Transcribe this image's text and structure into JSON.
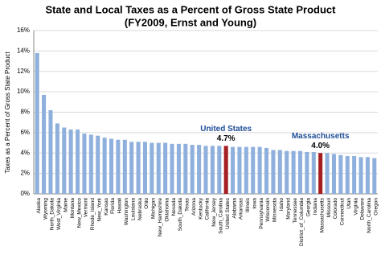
{
  "chart_data": {
    "type": "bar",
    "title": "State and Local Taxes as a Percent of Gross State Product",
    "subtitle": "(FY2009, Ernst and Young)",
    "y_label": "Taxes as a Percent of Gross State Product",
    "categories": [
      "Alaska",
      "Wyoming",
      "North_Dakota",
      "West_Virginia",
      "Maine",
      "Montana",
      "New_Mexico",
      "Vermont",
      "Rhode_Island",
      "New_York",
      "Kansas",
      "Florida",
      "Hawaii",
      "Washington",
      "Louisiana",
      "Nebraska",
      "Ohio",
      "Michigan",
      "New_Hampshire",
      "Oklahoma",
      "Nevada",
      "South_Dakota",
      "Texas",
      "Arizona",
      "Kentucky",
      "California",
      "New_Jersey",
      "South_Carolina",
      "United States",
      "Alabama",
      "Arkansas",
      "Illinois",
      "Iowa",
      "Pennsylvania",
      "Wisconsin",
      "Minnesota",
      "Idaho",
      "Maryland",
      "Tennessee",
      "District_of_Columbia",
      "Georgia",
      "Indiana",
      "Massachusetts",
      "Missouri",
      "Colorado",
      "Connecticut",
      "Utah",
      "Virginia",
      "Delaware",
      "North_Carolina",
      "Oregon"
    ],
    "values": [
      13.8,
      9.7,
      8.2,
      6.9,
      6.5,
      6.3,
      6.3,
      5.9,
      5.8,
      5.7,
      5.5,
      5.4,
      5.3,
      5.3,
      5.1,
      5.1,
      5.1,
      5.0,
      5.0,
      5.0,
      4.9,
      4.9,
      4.9,
      4.8,
      4.8,
      4.7,
      4.7,
      4.7,
      4.7,
      4.6,
      4.6,
      4.6,
      4.6,
      4.6,
      4.5,
      4.3,
      4.3,
      4.2,
      4.2,
      4.2,
      4.1,
      4.1,
      4.0,
      4.0,
      3.9,
      3.8,
      3.7,
      3.7,
      3.6,
      3.6,
      3.5
    ],
    "value_labels": [
      null,
      null,
      null,
      null,
      null,
      null,
      null,
      null,
      null,
      null,
      null,
      null,
      null,
      null,
      null,
      null,
      null,
      null,
      null,
      null,
      null,
      null,
      null,
      null,
      null,
      null,
      null,
      null,
      "4.7%",
      null,
      null,
      null,
      null,
      null,
      null,
      null,
      null,
      null,
      null,
      null,
      null,
      null,
      "4.0%",
      null,
      null,
      null,
      null,
      null,
      null,
      null,
      null
    ],
    "color": "#8fb0dc",
    "highlight_color": "#a51e22",
    "annotation_color": "#1f4e9a",
    "annotations": [
      "United States",
      "Massachusetts"
    ],
    "ylim": [
      0,
      16
    ],
    "yticks": [
      {
        "value": 0,
        "label": "0%"
      },
      {
        "value": 2,
        "label": "2%"
      },
      {
        "value": 4,
        "label": "4%"
      },
      {
        "value": 6,
        "label": "6%"
      },
      {
        "value": 8,
        "label": "8%"
      },
      {
        "value": 10,
        "label": "10%"
      },
      {
        "value": 12,
        "label": "12%"
      },
      {
        "value": 14,
        "label": "14%"
      },
      {
        "value": 16,
        "label": "16%"
      }
    ],
    "grid": true
  }
}
